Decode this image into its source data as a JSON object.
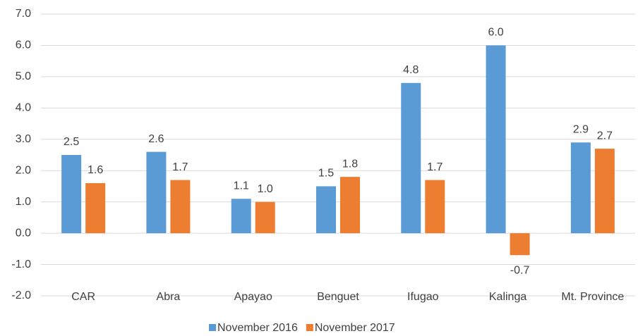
{
  "chart_data": {
    "type": "bar",
    "categories": [
      "CAR",
      "Abra",
      "Apayao",
      "Benguet",
      "Ifugao",
      "Kalinga",
      "Mt. Province"
    ],
    "series": [
      {
        "name": "November 2016",
        "color": "#5b9bd5",
        "values": [
          2.5,
          2.6,
          1.1,
          1.5,
          4.8,
          6.0,
          2.9
        ],
        "value_labels": [
          "2.5",
          "2.6",
          "1.1",
          "1.5",
          "4.8",
          "6.0",
          "2.9"
        ]
      },
      {
        "name": "November 2017",
        "color": "#ed7d31",
        "values": [
          1.6,
          1.7,
          1.0,
          1.8,
          1.7,
          -0.7,
          2.7
        ],
        "value_labels": [
          "1.6",
          "1.7",
          "1.0",
          "1.8",
          "1.7",
          "-0.7",
          "2.7"
        ]
      }
    ],
    "ylim": [
      -2,
      7
    ],
    "yticks": [
      {
        "value": -2,
        "label": "-2.0"
      },
      {
        "value": -1,
        "label": "-1.0"
      },
      {
        "value": 0,
        "label": "0.0"
      },
      {
        "value": 1,
        "label": "1.0"
      },
      {
        "value": 2,
        "label": "2.0"
      },
      {
        "value": 3,
        "label": "3.0"
      },
      {
        "value": 4,
        "label": "4.0"
      },
      {
        "value": 5,
        "label": "5.0"
      },
      {
        "value": 6,
        "label": "6.0"
      },
      {
        "value": 7,
        "label": "7.0"
      }
    ],
    "grid": true
  }
}
